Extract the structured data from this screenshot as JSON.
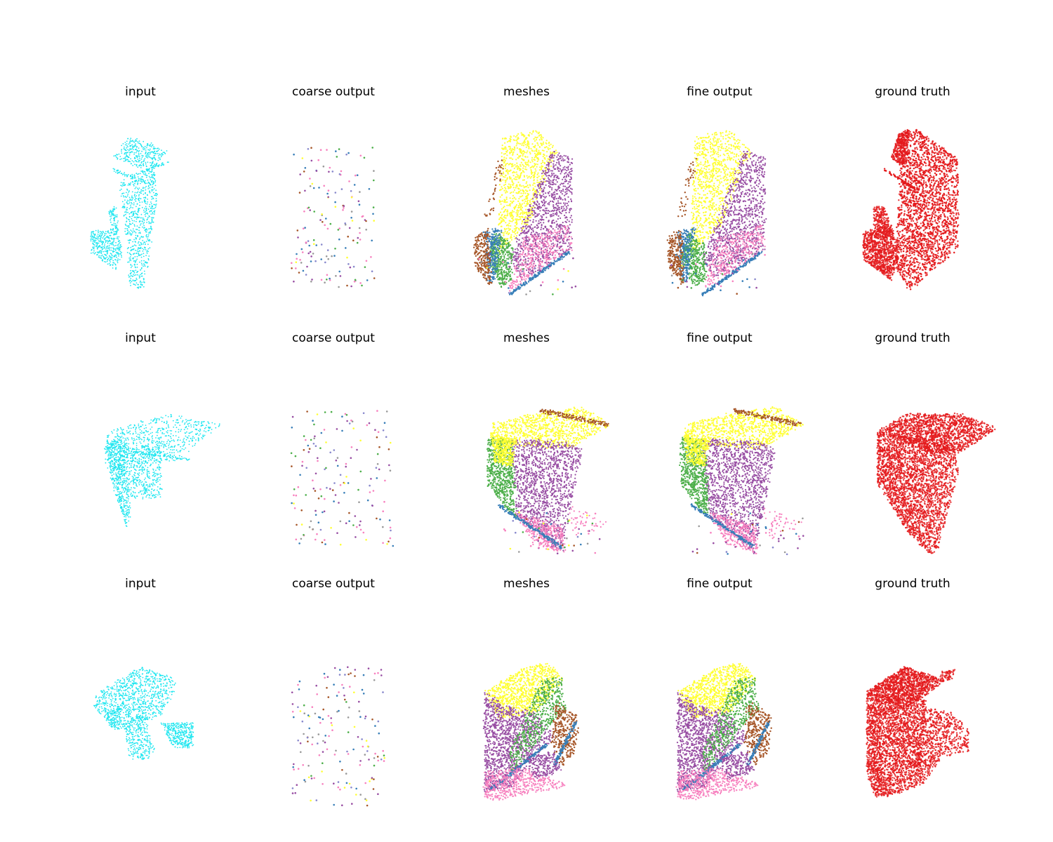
{
  "figure": {
    "type": "scatter",
    "column_titles": [
      "input",
      "coarse output",
      "meshes",
      "fine output",
      "ground truth"
    ],
    "colors": {
      "input": "#1ee6f0",
      "ground_truth": "#e41a1c",
      "mesh_palette": [
        "#ffff33",
        "#984ea3",
        "#f781bf",
        "#4daf4a",
        "#377eb8",
        "#a65628",
        "#999999"
      ]
    },
    "grid": false,
    "axes_visible": false
  },
  "chart_data": [
    {
      "row": 1,
      "col": 1,
      "type": "scatter",
      "title": "input",
      "x": [],
      "y": []
    },
    {
      "row": 1,
      "col": 2,
      "type": "scatter",
      "title": "coarse output",
      "x": [],
      "y": []
    },
    {
      "row": 1,
      "col": 3,
      "type": "scatter",
      "title": "meshes",
      "x": [],
      "y": []
    },
    {
      "row": 1,
      "col": 4,
      "type": "scatter",
      "title": "fine output",
      "x": [],
      "y": []
    },
    {
      "row": 1,
      "col": 5,
      "type": "scatter",
      "title": "ground truth",
      "x": [],
      "y": []
    },
    {
      "row": 2,
      "col": 1,
      "type": "scatter",
      "title": "input",
      "x": [],
      "y": []
    },
    {
      "row": 2,
      "col": 2,
      "type": "scatter",
      "title": "coarse output",
      "x": [],
      "y": []
    },
    {
      "row": 2,
      "col": 3,
      "type": "scatter",
      "title": "meshes",
      "x": [],
      "y": []
    },
    {
      "row": 2,
      "col": 4,
      "type": "scatter",
      "title": "fine output",
      "x": [],
      "y": []
    },
    {
      "row": 2,
      "col": 5,
      "type": "scatter",
      "title": "ground truth",
      "x": [],
      "y": []
    },
    {
      "row": 3,
      "col": 1,
      "type": "scatter",
      "title": "input",
      "x": [],
      "y": []
    },
    {
      "row": 3,
      "col": 2,
      "type": "scatter",
      "title": "coarse output",
      "x": [],
      "y": []
    },
    {
      "row": 3,
      "col": 3,
      "type": "scatter",
      "title": "meshes",
      "x": [],
      "y": []
    },
    {
      "row": 3,
      "col": 4,
      "type": "scatter",
      "title": "fine output",
      "x": [],
      "y": []
    },
    {
      "row": 3,
      "col": 5,
      "type": "scatter",
      "title": "ground truth",
      "x": [],
      "y": []
    }
  ]
}
